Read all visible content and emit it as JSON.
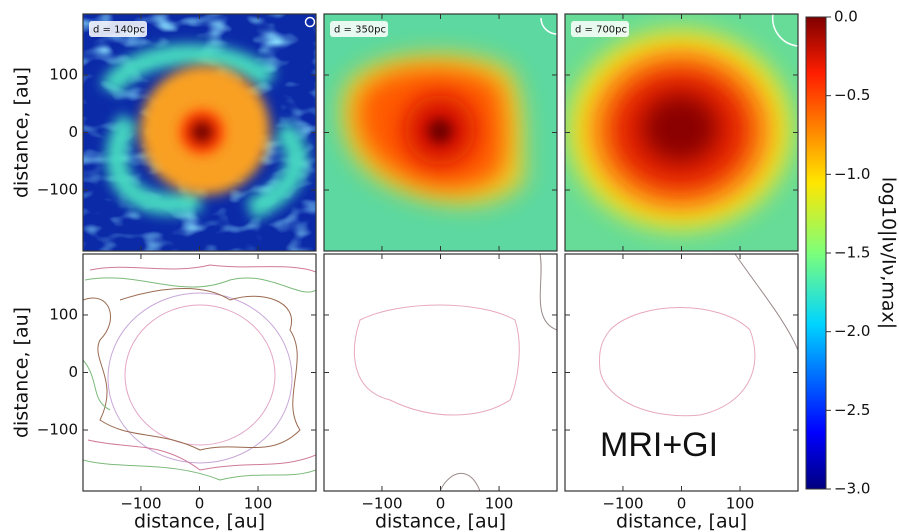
{
  "chart_data": {
    "type": "image-grid",
    "panels": [
      "d = 140pc",
      "d = 350pc",
      "d = 700pc"
    ],
    "xlabel": "distance, [au]",
    "ylabel": "distance, [au]",
    "xlim": [
      -199,
      199
    ],
    "ylim": [
      -206,
      206
    ],
    "xticks": [
      {
        "value": -100,
        "label": "−100"
      },
      0,
      100
    ],
    "yticks": [
      {
        "value": -100,
        "label": "−100"
      },
      0,
      100
    ],
    "colorbar": {
      "label": "log10|Iν/Iν,max|",
      "lim": [
        -3,
        0
      ],
      "colormap": "jet",
      "ticks": [
        {
          "value": 0,
          "label": "0.0"
        },
        {
          "value": -0.5,
          "label": "−0.5"
        },
        {
          "value": -1,
          "label": "−1.0"
        },
        {
          "value": -1.5,
          "label": "−1.5"
        },
        {
          "value": -2,
          "label": "−2.0"
        },
        {
          "value": -2.5,
          "label": "−2.5"
        },
        {
          "value": -3,
          "label": "−3.0"
        }
      ]
    },
    "annotation": "MRI+GI"
  }
}
